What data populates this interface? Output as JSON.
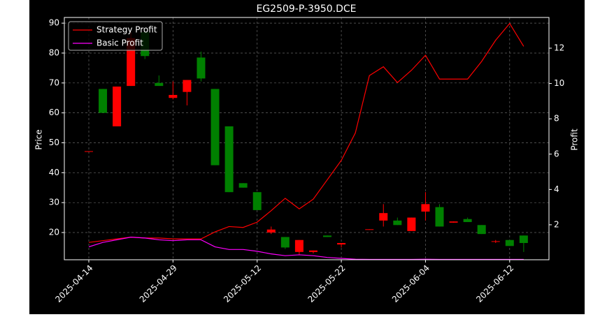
{
  "chart_data": {
    "type": "candlestick",
    "title": "EG2509-P-3950.DCE",
    "ylabel": "Price",
    "y2label": "Profit",
    "categories": [
      "2025-04-14",
      null,
      null,
      null,
      null,
      null,
      "2025-04-29",
      null,
      null,
      null,
      null,
      null,
      "2025-05-12",
      null,
      null,
      null,
      null,
      null,
      "2025-05-22",
      null,
      null,
      null,
      null,
      null,
      "2025-06-04",
      null,
      null,
      null,
      null,
      null,
      "2025-06-12",
      null
    ],
    "open": [
      47,
      68,
      55.5,
      69,
      87,
      70,
      65,
      67,
      78.5,
      68,
      55.5,
      36.5,
      33.5,
      20,
      18.5,
      13.5,
      13.5,
      19,
      16,
      null,
      20.9,
      24,
      24,
      20.5,
      27,
      28.5,
      23.3,
      24.5,
      22.5,
      16.9,
      17.5,
      19
    ],
    "high": [
      47.2,
      68,
      68.8,
      87,
      88,
      72.5,
      70.5,
      71,
      80.5,
      68,
      55.5,
      36.5,
      33.5,
      22,
      18.5,
      17.5,
      14,
      19,
      16.5,
      null,
      21.1,
      29.5,
      25,
      25,
      33.5,
      29.5,
      23.7,
      25,
      22.5,
      17.5,
      17.5,
      19
    ],
    "low": [
      47,
      60,
      55.5,
      69,
      78,
      69,
      64.5,
      62.5,
      70.5,
      42.5,
      33.5,
      35,
      27.5,
      19.5,
      14.5,
      12.5,
      13,
      18.5,
      15,
      null,
      20.9,
      22,
      22.5,
      20.5,
      24,
      22,
      23.3,
      23.5,
      19.5,
      16.5,
      15.5,
      13.5
    ],
    "close": [
      47.2,
      60,
      68.8,
      85,
      79,
      69,
      66,
      71,
      71.5,
      42.5,
      33.5,
      35,
      27.5,
      21,
      15,
      17.5,
      14,
      18.5,
      16.5,
      null,
      21.1,
      26.5,
      22.5,
      25,
      29.5,
      22,
      23.7,
      23.5,
      19.5,
      17.1,
      15.5,
      16.5
    ],
    "up_color": "#ff0000",
    "down_color": "#008000",
    "series": [
      {
        "name": "Strategy Profit",
        "color": "#ff0000",
        "axis": "y2",
        "values": [
          1.0,
          1.1,
          1.2,
          1.3,
          1.25,
          1.25,
          1.2,
          1.2,
          1.2,
          1.6,
          1.9,
          1.85,
          2.15,
          2.8,
          3.5,
          2.9,
          3.45,
          4.55,
          5.65,
          7.2,
          10.45,
          10.95,
          10.05,
          10.75,
          11.6,
          10.25,
          10.25,
          10.25,
          11.25,
          12.45,
          13.4,
          12.1
        ]
      },
      {
        "name": "Basic Profit",
        "color": "#ff00ff",
        "axis": "y2",
        "values": [
          0.75,
          1.0,
          1.15,
          1.3,
          1.25,
          1.15,
          1.1,
          1.15,
          1.15,
          0.75,
          0.6,
          0.6,
          0.5,
          0.35,
          0.25,
          0.3,
          0.25,
          0.15,
          0.1,
          0.05,
          0.04,
          0.04,
          0.04,
          0.04,
          0.05,
          0.04,
          0.04,
          0.04,
          0.04,
          0.04,
          0.04,
          0.04
        ]
      }
    ],
    "ylim": [
      10.9,
      91.9
    ],
    "yticks": [
      20,
      30,
      40,
      50,
      60,
      70,
      80,
      90
    ],
    "y2lim": [
      0.02,
      13.74
    ],
    "y2ticks": [
      2,
      4,
      6,
      8,
      10,
      12
    ],
    "grid": true,
    "legend": "upper left"
  }
}
